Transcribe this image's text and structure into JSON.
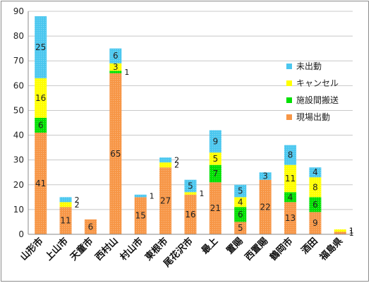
{
  "chart_data": {
    "type": "bar",
    "stacked": true,
    "title": "",
    "xlabel": "",
    "ylabel": "",
    "ylim": [
      0,
      90
    ],
    "yticks": [
      0,
      10,
      20,
      30,
      40,
      50,
      60,
      70,
      80,
      90
    ],
    "grid": true,
    "legend_position": "right",
    "categories": [
      "山形市",
      "上山市",
      "天童市",
      "西村山",
      "村山市",
      "東根市",
      "尾花沢市",
      "最上",
      "置賜",
      "西置賜",
      "鶴岡市",
      "酒田",
      "福島県"
    ],
    "series": [
      {
        "name": "現場出動",
        "color": "#f79646",
        "values": [
          41,
          11,
          6,
          65,
          15,
          27,
          16,
          21,
          5,
          22,
          13,
          9,
          1
        ]
      },
      {
        "name": "施設間搬送",
        "color": "#00e000",
        "values": [
          6,
          0,
          0,
          1,
          0,
          0,
          0,
          7,
          6,
          0,
          4,
          6,
          0
        ]
      },
      {
        "name": "キャンセル",
        "color": "#ffff00",
        "values": [
          16,
          2,
          0,
          3,
          0,
          2,
          1,
          5,
          4,
          0,
          11,
          8,
          1
        ]
      },
      {
        "name": "未出動",
        "color": "#4bc7ef",
        "values": [
          25,
          2,
          0,
          6,
          1,
          2,
          5,
          9,
          5,
          3,
          8,
          4,
          0
        ]
      }
    ],
    "legend_order": [
      "未出動",
      "キャンセル",
      "施設間搬送",
      "現場出動"
    ]
  }
}
